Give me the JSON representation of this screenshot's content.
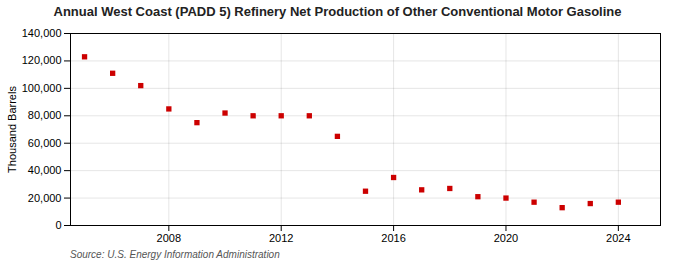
{
  "chart_data": {
    "type": "scatter",
    "title": "Annual West Coast (PADD 5) Refinery Net Production of Other Conventional Motor Gasoline",
    "ylabel": "Thousand Barrels",
    "annotation": "Source: U.S. Energy Information Administration",
    "x": [
      2005,
      2006,
      2007,
      2008,
      2009,
      2010,
      2011,
      2012,
      2013,
      2014,
      2015,
      2016,
      2017,
      2018,
      2019,
      2020,
      2021,
      2022,
      2023,
      2024
    ],
    "values": [
      123000,
      111000,
      102000,
      85000,
      75000,
      82000,
      80000,
      80000,
      80000,
      65000,
      25000,
      35000,
      26000,
      27000,
      21000,
      20000,
      17000,
      13000,
      16000,
      17000
    ],
    "color": "#cc0000",
    "marker": "square",
    "xlim": [
      2004.5,
      2025.5
    ],
    "xticks": [
      2008,
      2012,
      2016,
      2020,
      2024
    ],
    "ylim": [
      0,
      140000
    ],
    "yticks": [
      0,
      {
        "value": 20000,
        "label": "20,000"
      },
      {
        "value": 40000,
        "label": "40,000"
      },
      {
        "value": 60000,
        "label": "60,000"
      },
      {
        "value": 80000,
        "label": "80,000"
      },
      {
        "value": 100000,
        "label": "100,000"
      },
      {
        "value": 120000,
        "label": "120,000"
      },
      {
        "value": 140000,
        "label": "140,000"
      }
    ],
    "grid": true
  }
}
